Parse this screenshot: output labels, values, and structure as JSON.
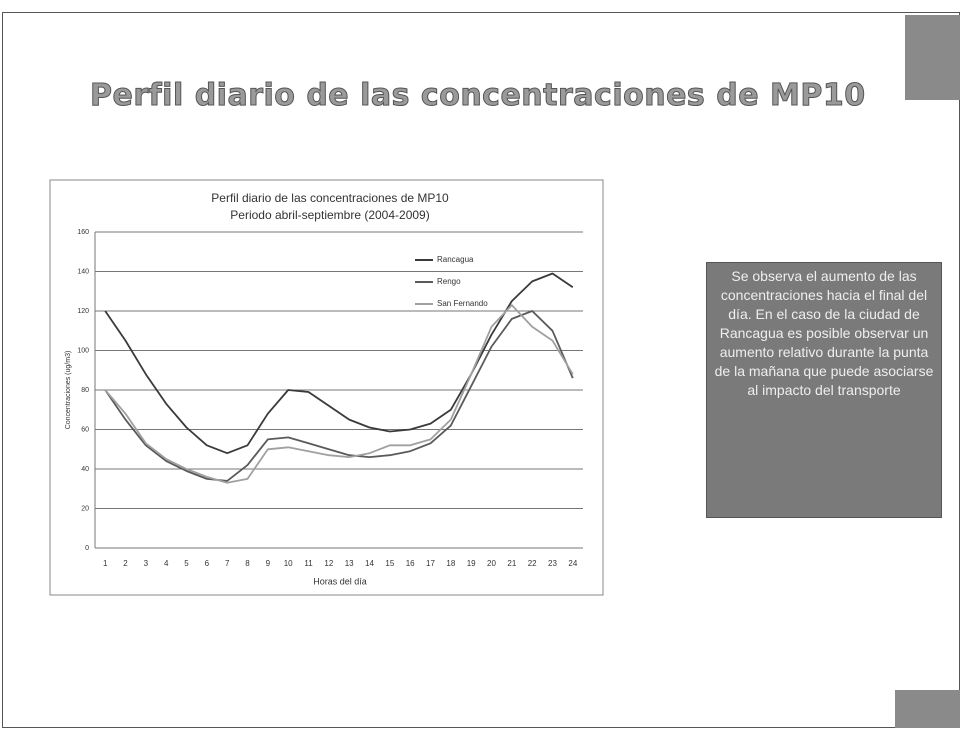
{
  "slide": {
    "title": "Perfil diario de las concentraciones de MP10",
    "note": "Se observa el aumento de las concentraciones hacia el final del día. En el caso de la ciudad de Rancagua es posible observar un aumento relativo durante la punta de la mañana que puede asociarse al impacto del transporte"
  },
  "chart_data": {
    "type": "line",
    "title": "Perfil diario de las concentraciones de MP10",
    "subtitle": "Periodo abril-septiembre (2004-2009)",
    "x_label": "Horas del día",
    "y_label": "Concentraciones (ug/m3)",
    "categories": [
      "1",
      "2",
      "3",
      "4",
      "5",
      "6",
      "7",
      "8",
      "9",
      "10",
      "11",
      "12",
      "13",
      "14",
      "15",
      "16",
      "17",
      "18",
      "19",
      "20",
      "21",
      "22",
      "23",
      "24"
    ],
    "series": [
      {
        "name": "Rancagua",
        "color": "#3a3a3a",
        "values": [
          120,
          105,
          88,
          73,
          61,
          52,
          48,
          52,
          68,
          80,
          79,
          72,
          65,
          61,
          59,
          60,
          63,
          70,
          88,
          108,
          125,
          135,
          139,
          132
        ]
      },
      {
        "name": "Rengo",
        "color": "#5a5a5a",
        "values": [
          80,
          65,
          52,
          44,
          39,
          35,
          34,
          42,
          55,
          56,
          53,
          50,
          47,
          46,
          47,
          49,
          53,
          62,
          82,
          102,
          116,
          120,
          110,
          86
        ]
      },
      {
        "name": "San Fernando",
        "color": "#a0a0a0",
        "values": [
          80,
          68,
          53,
          45,
          40,
          36,
          33,
          35,
          50,
          51,
          49,
          47,
          46,
          48,
          52,
          52,
          55,
          65,
          88,
          112,
          123,
          112,
          105,
          88
        ]
      }
    ],
    "ylim": [
      0,
      160
    ],
    "yticks": [
      0,
      20,
      40,
      60,
      80,
      100,
      120,
      140,
      160
    ],
    "grid": true,
    "legend": "top-right"
  }
}
